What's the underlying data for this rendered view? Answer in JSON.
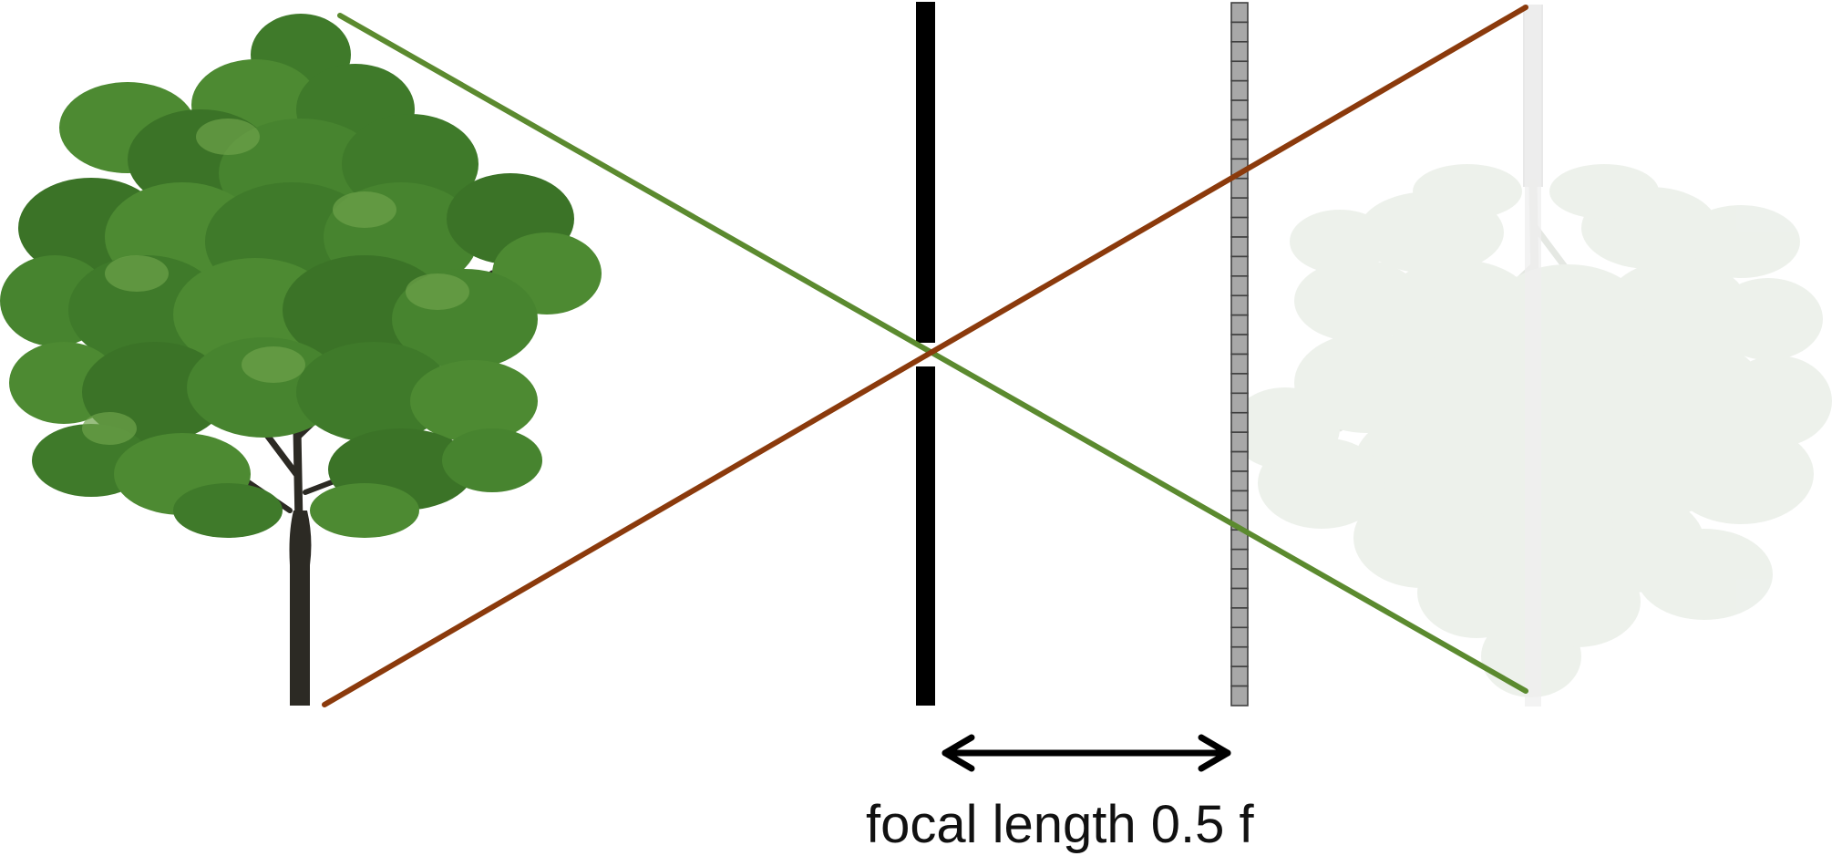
{
  "caption": "focal length 0.5 f",
  "colors": {
    "ray_top_of_object": "#5b8a2f",
    "ray_bottom_of_object": "#8b3a0c",
    "foliage": "#3f7a2a",
    "foliage_light": "#6ea34a",
    "trunk": "#2c2a24",
    "aperture": "#000000",
    "sensor_fill": "#a8a8a8",
    "sensor_stroke": "#404040",
    "projected_image": "#dfe6dc",
    "arrow": "#000000"
  },
  "icons": {
    "object": "tree-icon",
    "projected_image": "inverted-tree-icon",
    "aperture": "pinhole-barrier",
    "sensor": "pixel-sensor",
    "dimension": "double-headed-arrow"
  }
}
